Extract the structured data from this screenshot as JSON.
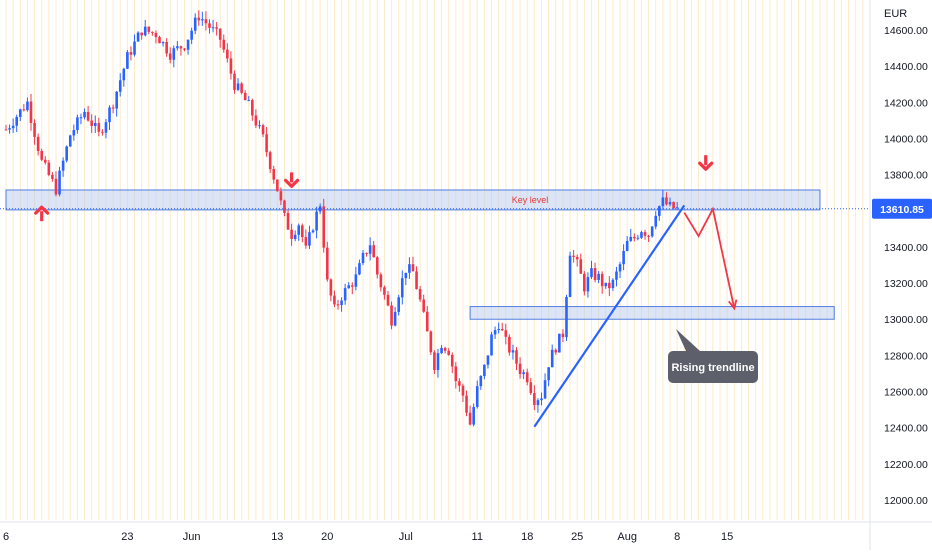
{
  "chart_data": {
    "type": "candlestick",
    "currency": "EUR",
    "current_price_label": "13610.85",
    "y_ticks": [
      "14600.00",
      "14400.00",
      "14200.00",
      "14000.00",
      "13800.00",
      "13600.00",
      "13400.00",
      "13200.00",
      "13000.00",
      "12800.00",
      "12600.00",
      "12400.00",
      "12200.00",
      "12000.00"
    ],
    "y_tick_values": [
      14600,
      14400,
      14200,
      14000,
      13800,
      13600,
      13400,
      13200,
      13000,
      12800,
      12600,
      12400,
      12200,
      12000
    ],
    "ylim": [
      11960,
      14700
    ],
    "x_ticks": [
      {
        "label": "6",
        "day": 0
      },
      {
        "label": "23",
        "day": 17
      },
      {
        "label": "Jun",
        "day": 26
      },
      {
        "label": "13",
        "day": 38
      },
      {
        "label": "20",
        "day": 45
      },
      {
        "label": "Jul",
        "day": 56
      },
      {
        "label": "11",
        "day": 66
      },
      {
        "label": "18",
        "day": 73
      },
      {
        "label": "25",
        "day": 80
      },
      {
        "label": "Aug",
        "day": 87
      },
      {
        "label": "8",
        "day": 94
      },
      {
        "label": "15",
        "day": 101
      }
    ],
    "price_path": [
      [
        0,
        14050
      ],
      [
        3,
        14200
      ],
      [
        5,
        13870
      ],
      [
        7,
        13720
      ],
      [
        9,
        14020
      ],
      [
        11,
        14150
      ],
      [
        13,
        14020
      ],
      [
        15,
        14200
      ],
      [
        17,
        14450
      ],
      [
        19,
        14600
      ],
      [
        21,
        14580
      ],
      [
        23,
        14470
      ],
      [
        25,
        14520
      ],
      [
        27,
        14680
      ],
      [
        28,
        14640
      ],
      [
        30,
        14550
      ],
      [
        32,
        14300
      ],
      [
        34,
        14180
      ],
      [
        36,
        14000
      ],
      [
        38,
        13720
      ],
      [
        39,
        13560
      ],
      [
        40,
        13470
      ],
      [
        41,
        13530
      ],
      [
        42,
        13380
      ],
      [
        43,
        13520
      ],
      [
        44,
        13640
      ],
      [
        45,
        13200
      ],
      [
        46,
        13050
      ],
      [
        47,
        13130
      ],
      [
        48,
        13180
      ],
      [
        49,
        13230
      ],
      [
        50,
        13340
      ],
      [
        51,
        13420
      ],
      [
        52,
        13250
      ],
      [
        53,
        13130
      ],
      [
        54,
        13000
      ],
      [
        55,
        13150
      ],
      [
        56,
        13280
      ],
      [
        57,
        13260
      ],
      [
        58,
        13100
      ],
      [
        59,
        12920
      ],
      [
        60,
        12750
      ],
      [
        61,
        12870
      ],
      [
        62,
        12830
      ],
      [
        63,
        12660
      ],
      [
        64,
        12580
      ],
      [
        65,
        12420
      ],
      [
        66,
        12610
      ],
      [
        67,
        12730
      ],
      [
        68,
        12900
      ],
      [
        69,
        12980
      ],
      [
        70,
        12870
      ],
      [
        71,
        12800
      ],
      [
        72,
        12720
      ],
      [
        73,
        12680
      ],
      [
        74,
        12560
      ],
      [
        75,
        12580
      ],
      [
        76,
        12760
      ],
      [
        77,
        12850
      ],
      [
        78,
        12920
      ],
      [
        79,
        13380
      ],
      [
        80,
        13300
      ],
      [
        81,
        13180
      ],
      [
        82,
        13250
      ],
      [
        83,
        13230
      ],
      [
        84,
        13170
      ],
      [
        85,
        13200
      ],
      [
        86,
        13300
      ],
      [
        87,
        13420
      ],
      [
        88,
        13450
      ],
      [
        89,
        13500
      ],
      [
        90,
        13470
      ],
      [
        91,
        13600
      ],
      [
        92,
        13650
      ],
      [
        93,
        13620
      ],
      [
        94,
        13610
      ]
    ],
    "horizontal_zones": [
      {
        "name": "key-level-zone",
        "label": "Key level",
        "from": 13605,
        "to": 13715,
        "start_day": 0,
        "end_day": 114
      },
      {
        "name": "support-zone",
        "label": "",
        "from": 13000,
        "to": 13070,
        "start_day": 65,
        "end_day": 116
      }
    ],
    "trendline": {
      "label": "Rising trendline",
      "points": [
        [
          74,
          12405
        ],
        [
          95,
          13630
        ]
      ]
    },
    "projection": [
      [
        95,
        13590
      ],
      [
        97,
        13460
      ],
      [
        99,
        13610
      ],
      [
        102,
        13060
      ]
    ],
    "arrows_up": [
      {
        "day": 5,
        "price": 13620
      }
    ],
    "arrows_down": [
      {
        "day": 40,
        "price": 13735
      },
      {
        "day": 98,
        "price": 13830
      }
    ]
  }
}
